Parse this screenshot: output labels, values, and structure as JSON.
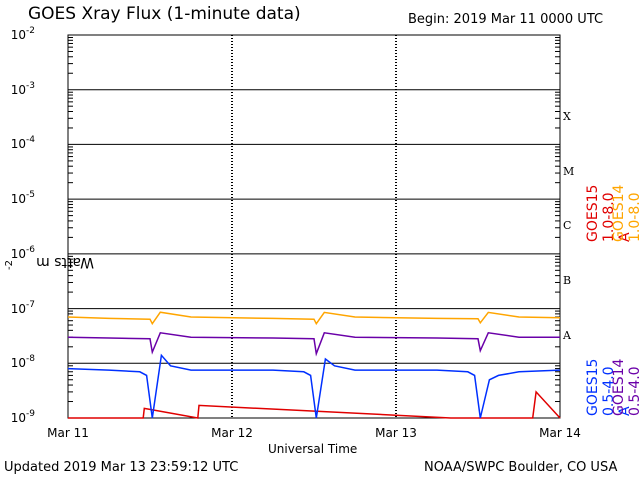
{
  "header": {
    "title": "GOES Xray Flux (1-minute data)",
    "begin": "Begin:  2019 Mar 11 0000 UTC"
  },
  "footer": {
    "updated": "Updated 2019 Mar 13 23:59:12 UTC",
    "credit": "NOAA/SWPC Boulder, CO USA"
  },
  "colors": {
    "goes15_long": "#e00000",
    "goes14_long": "#ffa500",
    "goes15_short": "#0030ff",
    "goes14_short": "#6a00a8",
    "background": "#ffffff",
    "grid": "#000000"
  },
  "chart_data": {
    "type": "line",
    "title": "GOES Xray Flux (1-minute data)",
    "xlabel": "Universal Time",
    "ylabel": "Watts m",
    "ylabel_sup": "-2",
    "y_scale": "log",
    "ylim": [
      1e-09,
      0.01
    ],
    "xlim": [
      "2019-03-11 00:00",
      "2019-03-14 00:00"
    ],
    "x_ticks": [
      "Mar 11",
      "Mar 12",
      "Mar 13",
      "Mar 14"
    ],
    "y_ticks": [
      {
        "base": "10",
        "exp": "-2",
        "value": 0.01
      },
      {
        "base": "10",
        "exp": "-3",
        "value": 0.001
      },
      {
        "base": "10",
        "exp": "-4",
        "value": 0.0001
      },
      {
        "base": "10",
        "exp": "-5",
        "value": 1e-05
      },
      {
        "base": "10",
        "exp": "-6",
        "value": 1e-06
      },
      {
        "base": "10",
        "exp": "-7",
        "value": 1e-07
      },
      {
        "base": "10",
        "exp": "-8",
        "value": 1e-08
      },
      {
        "base": "10",
        "exp": "-9",
        "value": 1e-09
      }
    ],
    "flare_classes": [
      {
        "label": "X",
        "value": 0.0001
      },
      {
        "label": "M",
        "value": 1e-05
      },
      {
        "label": "C",
        "value": 1e-06
      },
      {
        "label": "B",
        "value": 1e-07
      },
      {
        "label": "A",
        "value": 1e-08
      }
    ],
    "grid": true,
    "legend_position": "right, vertical",
    "series": [
      {
        "name": "GOES15 1.0-8.0 A",
        "color": "#e00000",
        "x": [
          "2019-03-11 00:00",
          "2019-03-11 11:00",
          "2019-03-11 11:10",
          "2019-03-11 19:00",
          "2019-03-11 19:10",
          "2019-03-13 08:00",
          "2019-03-13 20:00",
          "2019-03-13 20:30",
          "2019-03-14 00:00"
        ],
        "y": [
          1e-09,
          1e-09,
          1.5e-09,
          1e-09,
          1.7e-09,
          1e-09,
          1e-09,
          3e-09,
          1e-09
        ]
      },
      {
        "name": "GOES14 1.0-8.0 A",
        "color": "#ffa500",
        "x": [
          "2019-03-11 00:00",
          "2019-03-11 06:00",
          "2019-03-11 12:00",
          "2019-03-11 12:20",
          "2019-03-11 13:30",
          "2019-03-11 18:00",
          "2019-03-12 06:00",
          "2019-03-12 12:00",
          "2019-03-12 12:20",
          "2019-03-12 13:30",
          "2019-03-12 18:00",
          "2019-03-13 06:00",
          "2019-03-13 12:00",
          "2019-03-13 12:20",
          "2019-03-13 13:30",
          "2019-03-13 18:00",
          "2019-03-14 00:00"
        ],
        "y": [
          7e-08,
          6.6e-08,
          6.4e-08,
          5.3e-08,
          8.6e-08,
          7e-08,
          6.6e-08,
          6.4e-08,
          5.3e-08,
          8.5e-08,
          7e-08,
          6.6e-08,
          6.5e-08,
          5.5e-08,
          8.5e-08,
          7e-08,
          6.8e-08
        ]
      },
      {
        "name": "GOES15 0.5-4.0 A",
        "color": "#0030ff",
        "x": [
          "2019-03-11 00:00",
          "2019-03-11 06:00",
          "2019-03-11 10:30",
          "2019-03-11 11:30",
          "2019-03-11 12:20",
          "2019-03-11 13:40",
          "2019-03-11 15:00",
          "2019-03-11 18:00",
          "2019-03-12 06:00",
          "2019-03-12 10:30",
          "2019-03-12 11:30",
          "2019-03-12 12:20",
          "2019-03-12 13:40",
          "2019-03-12 15:00",
          "2019-03-12 18:00",
          "2019-03-13 06:00",
          "2019-03-13 10:30",
          "2019-03-13 11:30",
          "2019-03-13 12:20",
          "2019-03-13 13:40",
          "2019-03-13 15:00",
          "2019-03-13 18:00",
          "2019-03-14 00:00"
        ],
        "y": [
          8e-09,
          7.5e-09,
          7e-09,
          6e-09,
          1e-09,
          1.4e-08,
          9e-09,
          7.5e-09,
          7.5e-09,
          7e-09,
          6e-09,
          1e-09,
          1.2e-08,
          9e-09,
          7.5e-09,
          7.5e-09,
          7e-09,
          6e-09,
          1e-09,
          5e-09,
          6e-09,
          7e-09,
          7.5e-09
        ]
      },
      {
        "name": "GOES14 0.5-4.0 A",
        "color": "#6a00a8",
        "x": [
          "2019-03-11 00:00",
          "2019-03-11 06:00",
          "2019-03-11 12:00",
          "2019-03-11 12:20",
          "2019-03-11 13:30",
          "2019-03-11 18:00",
          "2019-03-12 06:00",
          "2019-03-12 12:00",
          "2019-03-12 12:20",
          "2019-03-12 13:30",
          "2019-03-12 18:00",
          "2019-03-13 06:00",
          "2019-03-13 12:00",
          "2019-03-13 12:20",
          "2019-03-13 13:30",
          "2019-03-13 18:00",
          "2019-03-14 00:00"
        ],
        "y": [
          3e-08,
          2.9e-08,
          2.8e-08,
          1.6e-08,
          3.6e-08,
          3e-08,
          2.9e-08,
          2.8e-08,
          1.5e-08,
          3.6e-08,
          3e-08,
          2.9e-08,
          2.8e-08,
          1.7e-08,
          3.6e-08,
          3e-08,
          3e-08
        ]
      }
    ]
  }
}
